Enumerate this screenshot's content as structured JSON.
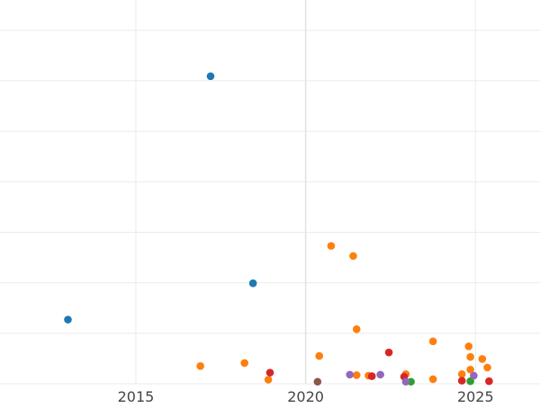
{
  "chart_data": {
    "type": "scatter",
    "title": "",
    "xlabel": "",
    "ylabel": "",
    "x_ticks": [
      {
        "value": 2015,
        "label": "2015"
      },
      {
        "value": 2020,
        "label": "2020"
      },
      {
        "value": 2025,
        "label": "2025"
      }
    ],
    "xlim": [
      2011,
      2026.9
    ],
    "ylim": [
      0,
      7.6
    ],
    "y_gridlines": [
      0,
      1,
      2,
      3,
      4,
      5,
      6,
      7
    ],
    "x_gridlines": [
      2015,
      2020,
      2025
    ],
    "grid": true,
    "legend": "none",
    "colors": {
      "blue": "#1f77b4",
      "orange": "#ff7f0e",
      "green": "#2ca02c",
      "red": "#d62728",
      "purple": "#9467bd",
      "brown": "#8c564b",
      "grid": "#ebebeb",
      "tick_label": "#444444"
    },
    "series": [
      {
        "color": "#1f77b4",
        "points": [
          {
            "x": 2017.2,
            "y": 6.09
          },
          {
            "x": 2018.45,
            "y": 1.99
          },
          {
            "x": 2013.0,
            "y": 1.27
          }
        ]
      },
      {
        "color": "#ff7f0e",
        "points": [
          {
            "x": 2020.75,
            "y": 2.73
          },
          {
            "x": 2021.4,
            "y": 2.53
          },
          {
            "x": 2021.5,
            "y": 1.08
          },
          {
            "x": 2023.75,
            "y": 0.84
          },
          {
            "x": 2024.8,
            "y": 0.74
          },
          {
            "x": 2020.4,
            "y": 0.55
          },
          {
            "x": 2024.85,
            "y": 0.53
          },
          {
            "x": 2025.2,
            "y": 0.49
          },
          {
            "x": 2016.9,
            "y": 0.35
          },
          {
            "x": 2018.2,
            "y": 0.41
          },
          {
            "x": 2025.35,
            "y": 0.32
          },
          {
            "x": 2024.85,
            "y": 0.28
          },
          {
            "x": 2024.6,
            "y": 0.19
          },
          {
            "x": 2021.5,
            "y": 0.17
          },
          {
            "x": 2021.85,
            "y": 0.16
          },
          {
            "x": 2022.95,
            "y": 0.19
          },
          {
            "x": 2023.75,
            "y": 0.09
          },
          {
            "x": 2018.9,
            "y": 0.08
          }
        ]
      },
      {
        "color": "#2ca02c",
        "points": [
          {
            "x": 2023.1,
            "y": 0.04
          },
          {
            "x": 2024.85,
            "y": 0.05
          }
        ]
      },
      {
        "color": "#d62728",
        "points": [
          {
            "x": 2022.45,
            "y": 0.62
          },
          {
            "x": 2018.95,
            "y": 0.22
          },
          {
            "x": 2021.95,
            "y": 0.15
          },
          {
            "x": 2022.9,
            "y": 0.14
          },
          {
            "x": 2024.6,
            "y": 0.06
          },
          {
            "x": 2025.4,
            "y": 0.05
          }
        ]
      },
      {
        "color": "#9467bd",
        "points": [
          {
            "x": 2021.3,
            "y": 0.18
          },
          {
            "x": 2022.2,
            "y": 0.18
          },
          {
            "x": 2024.95,
            "y": 0.16
          },
          {
            "x": 2022.95,
            "y": 0.04
          }
        ]
      },
      {
        "color": "#8c564b",
        "points": [
          {
            "x": 2020.35,
            "y": 0.04
          }
        ]
      }
    ]
  }
}
